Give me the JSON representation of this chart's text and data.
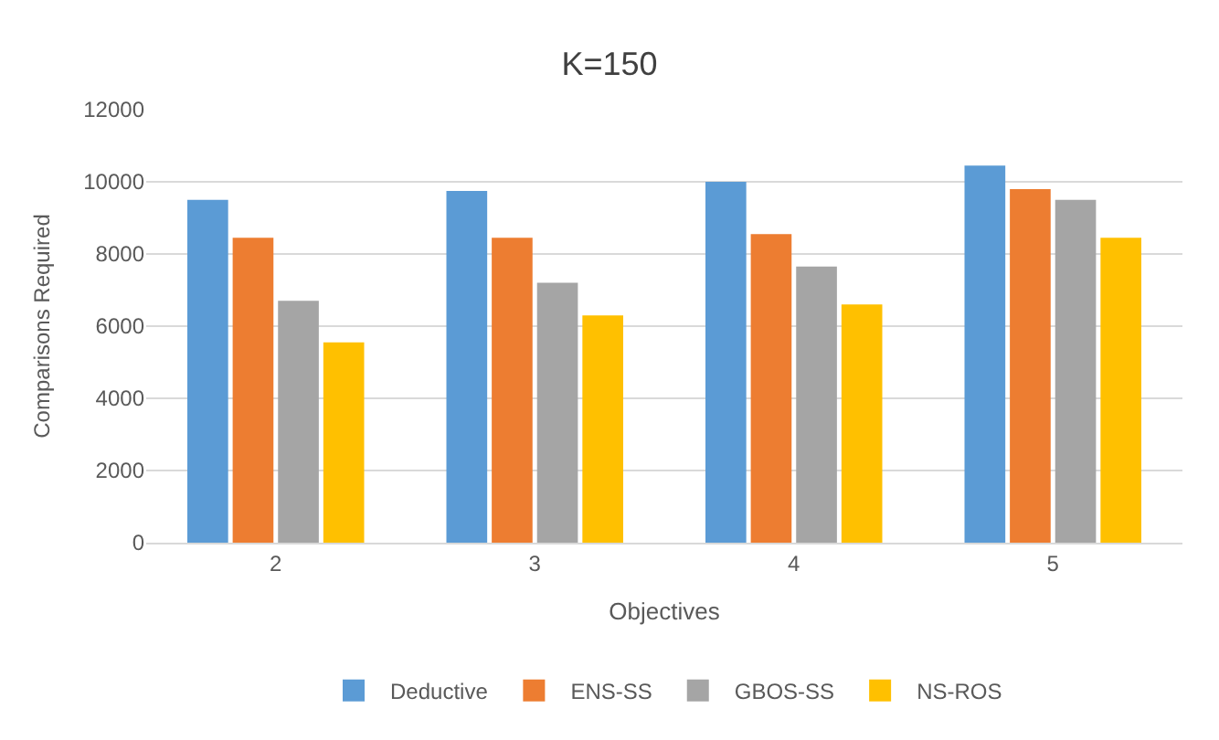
{
  "chart_data": {
    "type": "bar",
    "title": "K=150",
    "xlabel": "Objectives",
    "ylabel": "Comparisons Required",
    "categories": [
      "2",
      "3",
      "4",
      "5"
    ],
    "series": [
      {
        "name": "Deductive",
        "color": "#5b9bd5",
        "values": [
          9500,
          9750,
          10000,
          10450
        ]
      },
      {
        "name": "ENS-SS",
        "color": "#ed7d31",
        "values": [
          8450,
          8450,
          8550,
          9800
        ]
      },
      {
        "name": "GBOS-SS",
        "color": "#a5a5a5",
        "values": [
          6700,
          7200,
          7650,
          9500
        ]
      },
      {
        "name": "NS-ROS",
        "color": "#ffc000",
        "values": [
          5550,
          6300,
          6600,
          8450
        ]
      }
    ],
    "ylim": [
      0,
      12000
    ],
    "yticks": [
      0,
      2000,
      4000,
      6000,
      8000,
      10000,
      12000
    ],
    "grid": "y",
    "legend": "bottom"
  }
}
